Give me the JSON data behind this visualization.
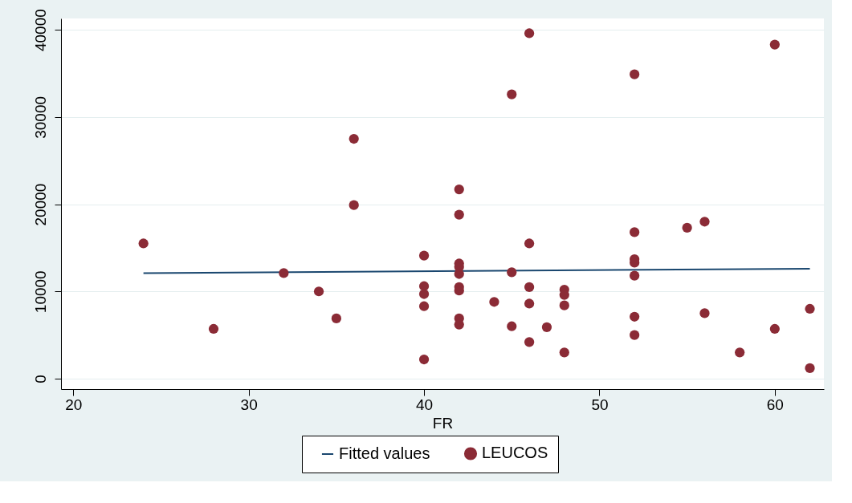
{
  "chart_data": {
    "type": "scatter",
    "xlabel": "FR",
    "xlim": [
      19.3,
      62.8
    ],
    "xticks": [
      20,
      30,
      40,
      50,
      60
    ],
    "ylim": [
      -1200,
      41300
    ],
    "yticks": [
      0,
      10000,
      20000,
      30000,
      40000
    ],
    "grid": "y",
    "legend": "bottom",
    "series": [
      {
        "name": "Fitted values",
        "type": "line",
        "color": "#1a476f",
        "x": [
          24,
          62
        ],
        "values": [
          12100,
          12600
        ]
      },
      {
        "name": "LEUCOS",
        "color": "#8b2b36",
        "marker": "circle",
        "x": [
          24,
          28,
          32,
          34,
          35,
          36,
          36,
          40,
          40,
          40,
          40,
          40,
          42,
          42,
          42,
          42,
          42,
          42,
          42,
          42,
          42,
          44,
          45,
          45,
          45,
          46,
          46,
          46,
          46,
          46,
          47,
          48,
          48,
          48,
          48,
          52,
          52,
          52,
          52,
          52,
          52,
          52,
          55,
          56,
          56,
          58,
          60,
          60,
          62,
          62
        ],
        "values": [
          15500,
          5700,
          12100,
          10000,
          6900,
          27500,
          19900,
          14100,
          10600,
          9700,
          8300,
          2200,
          21700,
          18800,
          13200,
          12800,
          12000,
          10500,
          10100,
          6900,
          6200,
          8800,
          32600,
          12200,
          6000,
          39600,
          15500,
          10500,
          8600,
          4200,
          5900,
          10200,
          9600,
          8400,
          3000,
          34900,
          16800,
          13700,
          13300,
          11800,
          7100,
          5000,
          17300,
          18000,
          7500,
          3000,
          38300,
          5700,
          8000,
          1200
        ]
      }
    ]
  }
}
